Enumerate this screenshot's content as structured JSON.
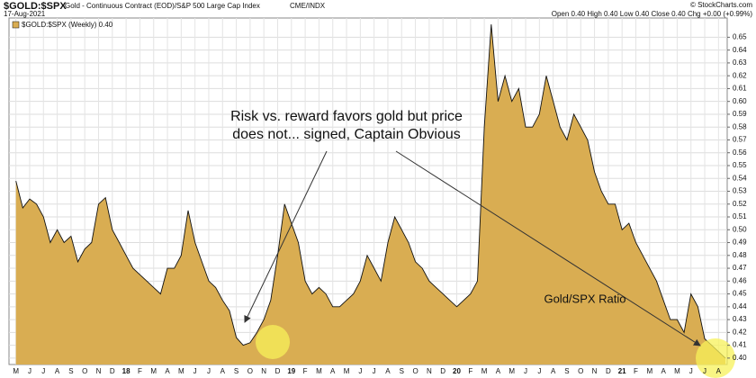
{
  "chart_data": {
    "type": "area",
    "title": "$GOLD:$SPX",
    "subtitle": "Gold - Continuous Contract (EOD)/S&P 500 Large Cap Index",
    "exchange": "CME/INDX",
    "date": "17-Aug-2021",
    "quote": "Open 0.40  High 0.40  Low 0.40  Close 0.40  Chg +0.00 (+0.99%)",
    "credit": "© StockCharts.com",
    "legend": "$GOLD:$SPX (Weekly) 0.40",
    "annotation": [
      "Risk vs. reward favors gold but price",
      "does not... signed, Captain Obvious"
    ],
    "label": "Gold/SPX Ratio",
    "categories": [
      "M",
      null,
      "J",
      null,
      "J",
      null,
      "A",
      null,
      "S",
      null,
      "O",
      null,
      "N",
      null,
      "D",
      null,
      "18",
      null,
      "F",
      null,
      "M",
      null,
      "A",
      null,
      "M",
      null,
      "J",
      null,
      "J",
      null,
      "A",
      null,
      "S",
      null,
      "O",
      null,
      "N",
      null,
      "D",
      null,
      "19",
      null,
      "F",
      null,
      "M",
      null,
      "A",
      null,
      "M",
      null,
      "J",
      null,
      "J",
      null,
      "A",
      null,
      "S",
      null,
      "O",
      null,
      "N",
      null,
      "D",
      null,
      "20",
      null,
      "F",
      null,
      "M",
      null,
      "A",
      null,
      "M",
      null,
      "J",
      null,
      "J",
      null,
      "A",
      null,
      "S",
      null,
      "O",
      null,
      "N",
      null,
      "D",
      null,
      "21",
      null,
      "F",
      null,
      "M",
      null,
      "A",
      null,
      "M",
      null,
      "J",
      null,
      "J",
      null,
      "A",
      null
    ],
    "series": [
      {
        "name": "$GOLD:$SPX",
        "color": "#d9ad52",
        "line_color": "#111111",
        "values": [
          0.538,
          0.517,
          0.524,
          0.52,
          0.51,
          0.49,
          0.5,
          0.49,
          0.495,
          0.475,
          0.485,
          0.49,
          0.52,
          0.525,
          0.5,
          0.49,
          0.48,
          0.47,
          0.465,
          0.46,
          0.455,
          0.45,
          0.47,
          0.47,
          0.48,
          0.515,
          0.49,
          0.475,
          0.46,
          0.455,
          0.445,
          0.437,
          0.416,
          0.41,
          0.412,
          0.42,
          0.43,
          0.445,
          0.48,
          0.52,
          0.505,
          0.49,
          0.46,
          0.45,
          0.455,
          0.45,
          0.44,
          0.44,
          0.445,
          0.45,
          0.46,
          0.48,
          0.47,
          0.46,
          0.49,
          0.51,
          0.5,
          0.49,
          0.475,
          0.47,
          0.46,
          0.455,
          0.45,
          0.445,
          0.44,
          0.445,
          0.45,
          0.46,
          0.58,
          0.66,
          0.6,
          0.62,
          0.6,
          0.61,
          0.58,
          0.58,
          0.59,
          0.62,
          0.6,
          0.58,
          0.57,
          0.59,
          0.58,
          0.57,
          0.545,
          0.53,
          0.52,
          0.52,
          0.5,
          0.505,
          0.49,
          0.48,
          0.47,
          0.46,
          0.445,
          0.43,
          0.43,
          0.42,
          0.45,
          0.44,
          0.415,
          0.41,
          0.405,
          0.4
        ]
      }
    ],
    "ylim": [
      0.395,
      0.665
    ],
    "yticks": [
      {
        "value": 0.4,
        "label": "0.40"
      },
      {
        "value": 0.41,
        "label": "0.41"
      },
      {
        "value": 0.42,
        "label": "0.42"
      },
      {
        "value": 0.43,
        "label": "0.43"
      },
      {
        "value": 0.44,
        "label": "0.44"
      },
      {
        "value": 0.45,
        "label": "0.45"
      },
      {
        "value": 0.46,
        "label": "0.46"
      },
      {
        "value": 0.47,
        "label": "0.47"
      },
      {
        "value": 0.48,
        "label": "0.48"
      },
      {
        "value": 0.49,
        "label": "0.49"
      },
      {
        "value": 0.5,
        "label": "0.50"
      },
      {
        "value": 0.51,
        "label": "0.51"
      },
      {
        "value": 0.52,
        "label": "0.52"
      },
      {
        "value": 0.53,
        "label": "0.53"
      },
      {
        "value": 0.54,
        "label": "0.54"
      },
      {
        "value": 0.55,
        "label": "0.55"
      },
      {
        "value": 0.56,
        "label": "0.56"
      },
      {
        "value": 0.57,
        "label": "0.57"
      },
      {
        "value": 0.58,
        "label": "0.58"
      },
      {
        "value": 0.59,
        "label": "0.59"
      },
      {
        "value": 0.6,
        "label": "0.60"
      },
      {
        "value": 0.61,
        "label": "0.61"
      },
      {
        "value": 0.62,
        "label": "0.62"
      },
      {
        "value": 0.63,
        "label": "0.63"
      },
      {
        "value": 0.64,
        "label": "0.64"
      },
      {
        "value": 0.65,
        "label": "0.65"
      }
    ],
    "grid": true
  }
}
